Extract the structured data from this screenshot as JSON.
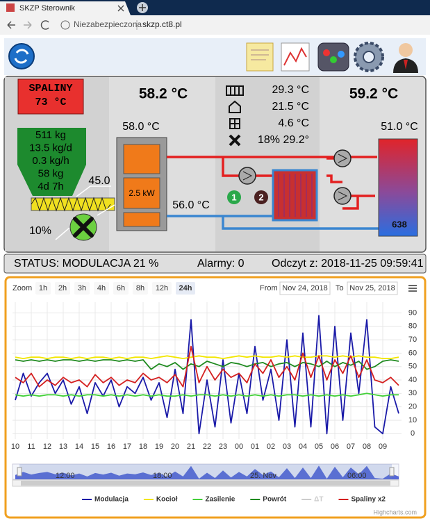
{
  "browser": {
    "tab_title": "SKZP Sterownik",
    "security": "Niezabezpieczona",
    "url": "skzp.ct8.pl"
  },
  "boiler": {
    "flue_label": "SPALINY",
    "flue_temp": "73 °C",
    "boiler_temp": "58.2 °C",
    "feed_temp": "58.0 °C",
    "fuel": [
      "511 kg",
      "13.5 kg/d",
      "0.3 kg/h",
      "58 kg",
      "4d 7h"
    ],
    "feeder_temp": "45.0",
    "power": "2.5 kW",
    "fan": "10%",
    "return_temp": "56.0 °C"
  },
  "heating": {
    "readings": [
      "29.3 °C",
      "21.5 °C",
      "4.6 °C",
      "18% 29.2°"
    ],
    "pumps": [
      "1",
      "2"
    ]
  },
  "tank": {
    "top_temp": "59.2 °C",
    "mid_temp": "51.0 °C",
    "level": "638"
  },
  "status": {
    "state": "STATUS: MODULACJA 21 %",
    "alarms": "Alarmy: 0",
    "reading": "Odczyt z: 2018-11-25 09:59:41"
  },
  "chart_data": {
    "type": "line",
    "zoom_label": "Zoom",
    "zoom_buttons": [
      "1h",
      "2h",
      "3h",
      "4h",
      "6h",
      "8h",
      "12h",
      "24h"
    ],
    "selected_zoom": 7,
    "from_label": "From",
    "from": "Nov 24, 2018",
    "to_label": "To",
    "to": "Nov 25, 2018",
    "categories": [
      "10",
      null,
      "11",
      null,
      "12",
      null,
      "13",
      null,
      "14",
      null,
      "15",
      null,
      "16",
      null,
      "17",
      null,
      "18",
      null,
      "19",
      null,
      "20",
      null,
      "21",
      null,
      "22",
      null,
      "23",
      null,
      "00",
      null,
      "01",
      null,
      "02",
      null,
      "03",
      null,
      "04",
      null,
      "05",
      null,
      "06",
      null,
      "07",
      null,
      "08",
      null,
      "09",
      null,
      null
    ],
    "ylim": [
      -4,
      98
    ],
    "yticks": [
      0,
      10,
      20,
      30,
      40,
      50,
      60,
      70,
      80,
      90
    ],
    "grid": true,
    "series": [
      {
        "name": "Modulacja",
        "color": "#1a1aa8",
        "values": [
          25,
          45,
          28,
          38,
          45,
          30,
          40,
          22,
          35,
          15,
          38,
          28,
          40,
          20,
          35,
          30,
          42,
          25,
          38,
          12,
          48,
          15,
          85,
          0,
          40,
          5,
          55,
          8,
          45,
          15,
          65,
          25,
          48,
          10,
          70,
          5,
          75,
          5,
          88,
          0,
          80,
          10,
          75,
          30,
          85,
          5,
          0,
          35,
          15
        ]
      },
      {
        "name": "Kocioł",
        "color": "#f2e600",
        "values": [
          57,
          56,
          57,
          57,
          56,
          57,
          57,
          56,
          57,
          56,
          57,
          57,
          56,
          57,
          56,
          57,
          57,
          56,
          57,
          58,
          57,
          56,
          57,
          58,
          57,
          57,
          56,
          57,
          58,
          57,
          58,
          57,
          57,
          58,
          57,
          58,
          57,
          57,
          58,
          58,
          57,
          58,
          57,
          58,
          57,
          57,
          56,
          56,
          57
        ]
      },
      {
        "name": "Zasilenie",
        "color": "#44d03a",
        "values": [
          29,
          28,
          29,
          28,
          29,
          29,
          28,
          29,
          28,
          29,
          29,
          28,
          29,
          28,
          29,
          28,
          29,
          28,
          29,
          28,
          28,
          29,
          28,
          29,
          29,
          28,
          29,
          28,
          29,
          28,
          29,
          28,
          29,
          28,
          29,
          29,
          28,
          29,
          28,
          29,
          28,
          29,
          28,
          29,
          30,
          29,
          28,
          29,
          29
        ]
      },
      {
        "name": "Powrót",
        "color": "#1f8a1f",
        "values": [
          55,
          54,
          55,
          54,
          55,
          54,
          55,
          55,
          54,
          55,
          54,
          55,
          55,
          54,
          55,
          54,
          55,
          48,
          52,
          50,
          53,
          48,
          52,
          50,
          54,
          52,
          50,
          53,
          52,
          50,
          52,
          53,
          50,
          52,
          53,
          50,
          53,
          52,
          50,
          54,
          50,
          53,
          51,
          54,
          48,
          50,
          54,
          55,
          54
        ]
      },
      {
        "name": "ΔT",
        "color": "#cccccc",
        "visible": false
      },
      {
        "name": "Spaliny x2",
        "color": "#d42020",
        "values": [
          42,
          38,
          45,
          35,
          40,
          36,
          42,
          38,
          40,
          35,
          44,
          38,
          42,
          36,
          40,
          38,
          45,
          40,
          42,
          38,
          44,
          35,
          65,
          38,
          50,
          40,
          48,
          42,
          45,
          38,
          52,
          45,
          55,
          42,
          50,
          40,
          60,
          42,
          58,
          40,
          55,
          45,
          58,
          42,
          55,
          40,
          38,
          42,
          36
        ]
      }
    ],
    "navigator_labels": [
      "12:00",
      "18:00",
      "25. Nov",
      "06:00"
    ],
    "credits": "Highcharts.com"
  }
}
